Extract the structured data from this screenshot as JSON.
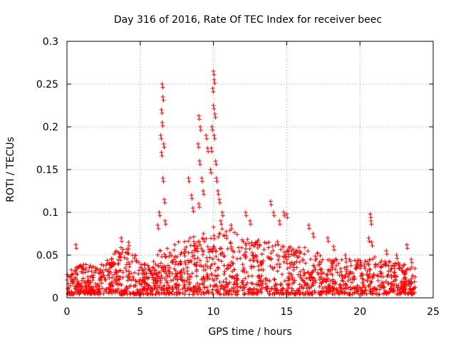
{
  "chart_data": {
    "type": "scatter",
    "title": "Day 316 of 2016, Rate Of TEC Index for receiver beec",
    "xlabel": "GPS time / hours",
    "ylabel": "ROTI / TECUs",
    "xlim": [
      0,
      25
    ],
    "ylim": [
      0,
      0.3
    ],
    "xticks": [
      0,
      5,
      10,
      15,
      20,
      25
    ],
    "xtick_labels": [
      "0",
      "5",
      "10",
      "15",
      "20",
      "25"
    ],
    "yticks": [
      0,
      0.05,
      0.1,
      0.15,
      0.2,
      0.25,
      0.3
    ],
    "ytick_labels": [
      "0",
      "0.05",
      "0.1",
      "0.15",
      "0.2",
      "0.25",
      "0.3"
    ],
    "grid": true,
    "marker": "+",
    "color": "#ff0000",
    "series": [
      {
        "name": "ROTI",
        "x_range": [
          0,
          23.8
        ],
        "baseline_envelope": {
          "x": [
            0,
            1,
            2,
            3,
            3.5,
            4,
            5,
            6,
            6.5,
            7,
            8,
            9,
            10,
            11,
            12,
            13,
            14,
            15,
            16,
            17,
            18,
            19,
            20,
            21,
            22,
            23,
            23.8
          ],
          "y": [
            0.03,
            0.04,
            0.04,
            0.045,
            0.06,
            0.06,
            0.045,
            0.045,
            0.06,
            0.06,
            0.07,
            0.075,
            0.085,
            0.08,
            0.075,
            0.07,
            0.07,
            0.06,
            0.06,
            0.055,
            0.045,
            0.045,
            0.045,
            0.05,
            0.045,
            0.04,
            0.035
          ]
        },
        "points": [
          {
            "x": 0.6,
            "y": 0.062
          },
          {
            "x": 3.7,
            "y": 0.07
          },
          {
            "x": 4.2,
            "y": 0.065
          },
          {
            "x": 6.5,
            "y": 0.25
          },
          {
            "x": 6.55,
            "y": 0.235
          },
          {
            "x": 6.45,
            "y": 0.22
          },
          {
            "x": 6.5,
            "y": 0.205
          },
          {
            "x": 6.4,
            "y": 0.19
          },
          {
            "x": 6.6,
            "y": 0.18
          },
          {
            "x": 6.45,
            "y": 0.17
          },
          {
            "x": 6.55,
            "y": 0.14
          },
          {
            "x": 6.65,
            "y": 0.115
          },
          {
            "x": 6.3,
            "y": 0.1
          },
          {
            "x": 6.2,
            "y": 0.085
          },
          {
            "x": 6.7,
            "y": 0.09
          },
          {
            "x": 8.3,
            "y": 0.14
          },
          {
            "x": 8.5,
            "y": 0.12
          },
          {
            "x": 8.6,
            "y": 0.105
          },
          {
            "x": 9.0,
            "y": 0.213
          },
          {
            "x": 9.1,
            "y": 0.2
          },
          {
            "x": 8.95,
            "y": 0.18
          },
          {
            "x": 9.05,
            "y": 0.16
          },
          {
            "x": 9.2,
            "y": 0.14
          },
          {
            "x": 9.3,
            "y": 0.125
          },
          {
            "x": 9.0,
            "y": 0.11
          },
          {
            "x": 9.5,
            "y": 0.19
          },
          {
            "x": 9.6,
            "y": 0.175
          },
          {
            "x": 10.0,
            "y": 0.265
          },
          {
            "x": 10.05,
            "y": 0.255
          },
          {
            "x": 9.95,
            "y": 0.245
          },
          {
            "x": 10.0,
            "y": 0.225
          },
          {
            "x": 10.1,
            "y": 0.215
          },
          {
            "x": 9.9,
            "y": 0.2
          },
          {
            "x": 10.05,
            "y": 0.19
          },
          {
            "x": 9.85,
            "y": 0.175
          },
          {
            "x": 10.15,
            "y": 0.16
          },
          {
            "x": 9.8,
            "y": 0.15
          },
          {
            "x": 10.2,
            "y": 0.14
          },
          {
            "x": 10.3,
            "y": 0.125
          },
          {
            "x": 10.4,
            "y": 0.115
          },
          {
            "x": 10.6,
            "y": 0.1
          },
          {
            "x": 10.5,
            "y": 0.09
          },
          {
            "x": 11.2,
            "y": 0.085
          },
          {
            "x": 12.2,
            "y": 0.1
          },
          {
            "x": 12.5,
            "y": 0.09
          },
          {
            "x": 13.9,
            "y": 0.113
          },
          {
            "x": 14.1,
            "y": 0.1
          },
          {
            "x": 14.8,
            "y": 0.1
          },
          {
            "x": 15.0,
            "y": 0.098
          },
          {
            "x": 14.5,
            "y": 0.09
          },
          {
            "x": 16.5,
            "y": 0.085
          },
          {
            "x": 16.8,
            "y": 0.075
          },
          {
            "x": 17.8,
            "y": 0.07
          },
          {
            "x": 18.2,
            "y": 0.06
          },
          {
            "x": 19.0,
            "y": 0.05
          },
          {
            "x": 20.7,
            "y": 0.098
          },
          {
            "x": 20.75,
            "y": 0.09
          },
          {
            "x": 20.6,
            "y": 0.07
          },
          {
            "x": 20.8,
            "y": 0.065
          },
          {
            "x": 21.8,
            "y": 0.055
          },
          {
            "x": 22.5,
            "y": 0.05
          },
          {
            "x": 23.2,
            "y": 0.062
          },
          {
            "x": 23.5,
            "y": 0.045
          }
        ]
      }
    ]
  }
}
